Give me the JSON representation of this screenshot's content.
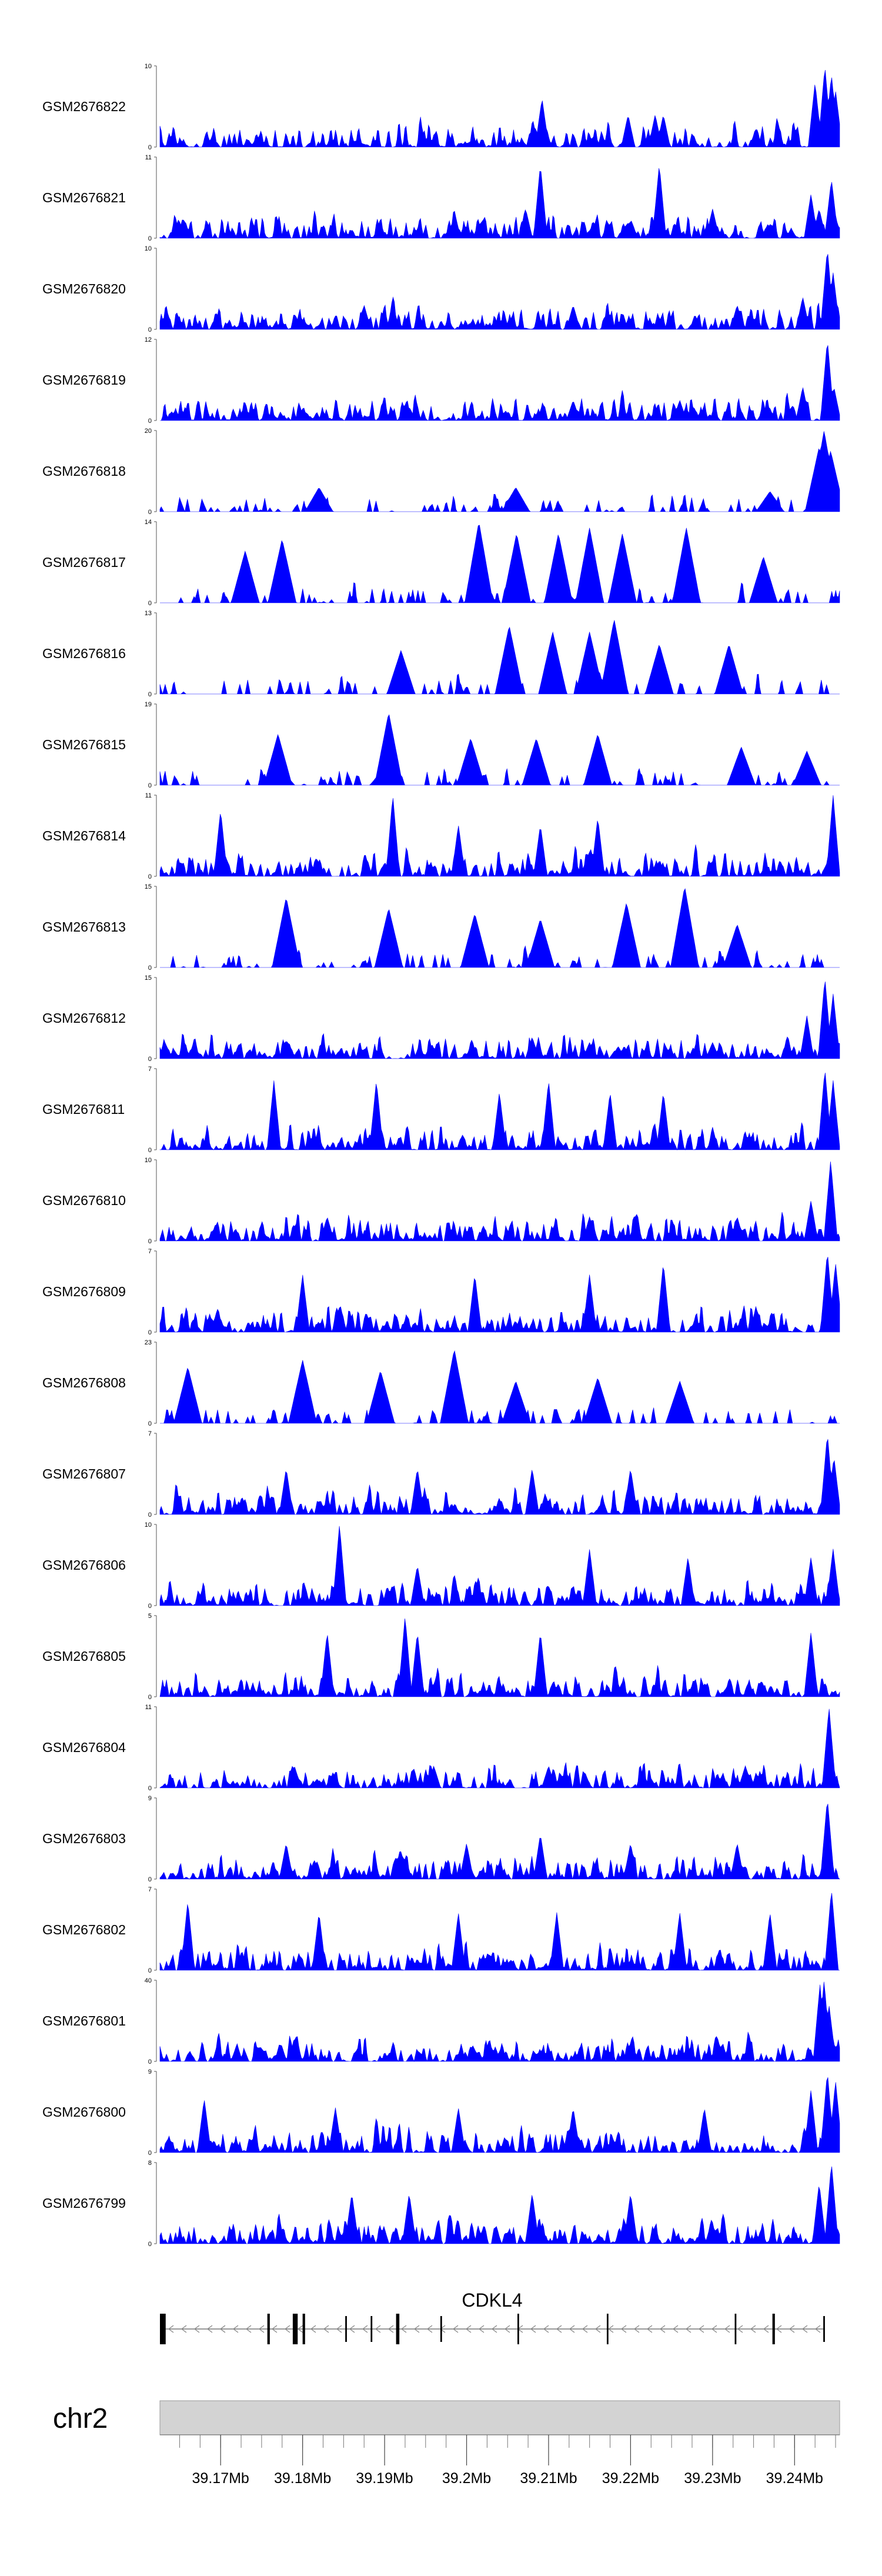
{
  "chart_data": {
    "type": "area",
    "genome_region": {
      "chromosome": "chr2",
      "xlim": [
        39.1626,
        39.2455
      ],
      "tick_values": [
        39.17,
        39.18,
        39.19,
        39.2,
        39.21,
        39.22,
        39.23,
        39.24
      ],
      "tick_labels": [
        "39.17Mb",
        "39.18Mb",
        "39.19Mb",
        "39.2Mb",
        "39.21Mb",
        "39.22Mb",
        "39.23Mb",
        "39.24Mb"
      ],
      "minor_tick_step": 0.0025
    },
    "gene": {
      "name": "CDKL4",
      "strand": "-",
      "start": 39.1626,
      "end": 39.2437,
      "exons": [
        {
          "start": 39.1626,
          "end": 39.1633,
          "thick": true
        },
        {
          "start": 39.1757,
          "end": 39.176,
          "thick": true
        },
        {
          "start": 39.1788,
          "end": 39.1794,
          "thick": true
        },
        {
          "start": 39.18,
          "end": 39.1803,
          "thick": true
        },
        {
          "start": 39.1852,
          "end": 39.1854,
          "thick": false
        },
        {
          "start": 39.1883,
          "end": 39.1885,
          "thick": false
        },
        {
          "start": 39.1914,
          "end": 39.1918,
          "thick": true
        },
        {
          "start": 39.1968,
          "end": 39.197,
          "thick": false
        },
        {
          "start": 39.2062,
          "end": 39.2064,
          "thick": true
        },
        {
          "start": 39.2171,
          "end": 39.2173,
          "thick": true
        },
        {
          "start": 39.2327,
          "end": 39.2329,
          "thick": true
        },
        {
          "start": 39.2373,
          "end": 39.2376,
          "thick": true
        },
        {
          "start": 39.2435,
          "end": 39.2437,
          "thick": false
        }
      ]
    },
    "series": [
      {
        "name": "GSM2676822",
        "ymax": 10,
        "fill": "#0000ff",
        "peaks": [
          [
            39.2092,
            6
          ],
          [
            39.2197,
            4
          ],
          [
            39.223,
            4
          ],
          [
            39.224,
            4
          ],
          [
            39.2425,
            8
          ],
          [
            39.2437,
            10
          ],
          [
            39.2445,
            9
          ],
          [
            39.245,
            7
          ]
        ]
      },
      {
        "name": "GSM2676821",
        "ymax": 11,
        "fill": "#0000ff",
        "peaks": [
          [
            39.209,
            10
          ],
          [
            39.2235,
            10
          ],
          [
            39.2072,
            4
          ],
          [
            39.23,
            4
          ],
          [
            39.242,
            6
          ],
          [
            39.243,
            4
          ],
          [
            39.2445,
            8
          ]
        ]
      },
      {
        "name": "GSM2676820",
        "ymax": 10,
        "fill": "#0000ff",
        "peaks": [
          [
            39.1875,
            3
          ],
          [
            39.213,
            3
          ],
          [
            39.233,
            3
          ],
          [
            39.241,
            4
          ],
          [
            39.244,
            10
          ],
          [
            39.2447,
            7
          ]
        ]
      },
      {
        "name": "GSM2676819",
        "ymax": 12,
        "fill": "#0000ff",
        "peaks": [
          [
            39.193,
            2
          ],
          [
            39.213,
            3
          ],
          [
            39.226,
            3
          ],
          [
            39.241,
            5
          ],
          [
            39.244,
            12
          ],
          [
            39.2448,
            5
          ]
        ]
      },
      {
        "name": "GSM2676818",
        "ymax": 20,
        "fill": "#0000ff",
        "peaks": [
          [
            39.182,
            6
          ],
          [
            39.206,
            6
          ],
          [
            39.237,
            5
          ],
          [
            39.243,
            16
          ],
          [
            39.2436,
            20
          ],
          [
            39.2444,
            15
          ]
        ]
      },
      {
        "name": "GSM2676817",
        "ymax": 14,
        "fill": "#0000ff",
        "peaks": [
          [
            39.173,
            9
          ],
          [
            39.1775,
            11
          ],
          [
            39.2015,
            14
          ],
          [
            39.2061,
            12
          ],
          [
            39.2112,
            12
          ],
          [
            39.215,
            13
          ],
          [
            39.219,
            12
          ],
          [
            39.2268,
            13
          ],
          [
            39.2362,
            8
          ]
        ]
      },
      {
        "name": "GSM2676816",
        "ymax": 13,
        "fill": "#0000ff",
        "peaks": [
          [
            39.192,
            7
          ],
          [
            39.2052,
            11
          ],
          [
            39.2105,
            10
          ],
          [
            39.215,
            10
          ],
          [
            39.218,
            12
          ],
          [
            39.2235,
            8
          ],
          [
            39.232,
            8
          ]
        ]
      },
      {
        "name": "GSM2676815",
        "ymax": 19,
        "fill": "#0000ff",
        "peaks": [
          [
            39.177,
            12
          ],
          [
            39.1905,
            17
          ],
          [
            39.2005,
            11
          ],
          [
            39.2085,
            11
          ],
          [
            39.216,
            12
          ],
          [
            39.2335,
            9
          ],
          [
            39.2415,
            8
          ]
        ]
      },
      {
        "name": "GSM2676814",
        "ymax": 11,
        "fill": "#0000ff",
        "peaks": [
          [
            39.17,
            9
          ],
          [
            39.191,
            11
          ],
          [
            39.199,
            7
          ],
          [
            39.209,
            7
          ],
          [
            39.216,
            8
          ],
          [
            39.2447,
            11
          ]
        ]
      },
      {
        "name": "GSM2676813",
        "ymax": 15,
        "fill": "#0000ff",
        "peaks": [
          [
            39.178,
            13
          ],
          [
            39.1905,
            11
          ],
          [
            39.201,
            10
          ],
          [
            39.209,
            9
          ],
          [
            39.2195,
            12
          ],
          [
            39.2266,
            15
          ],
          [
            39.233,
            8
          ]
        ]
      },
      {
        "name": "GSM2676812",
        "ymax": 15,
        "fill": "#0000ff",
        "peaks": [
          [
            39.208,
            4
          ],
          [
            39.215,
            3
          ],
          [
            39.23,
            3
          ],
          [
            39.2415,
            8
          ],
          [
            39.2437,
            15
          ],
          [
            39.2447,
            12
          ]
        ]
      },
      {
        "name": "GSM2676811",
        "ymax": 7,
        "fill": "#0000ff",
        "peaks": [
          [
            39.1765,
            6
          ],
          [
            39.189,
            6
          ],
          [
            39.204,
            5
          ],
          [
            39.21,
            6
          ],
          [
            39.2175,
            5
          ],
          [
            39.224,
            5
          ],
          [
            39.2437,
            7
          ],
          [
            39.2447,
            6
          ]
        ]
      },
      {
        "name": "GSM2676810",
        "ymax": 10,
        "fill": "#0000ff",
        "peaks": [
          [
            39.183,
            3
          ],
          [
            39.215,
            3
          ],
          [
            39.233,
            3
          ],
          [
            39.242,
            5
          ],
          [
            39.2444,
            10
          ]
        ]
      },
      {
        "name": "GSM2676809",
        "ymax": 7,
        "fill": "#0000ff",
        "peaks": [
          [
            39.18,
            5
          ],
          [
            39.201,
            5
          ],
          [
            39.215,
            5
          ],
          [
            39.224,
            6
          ],
          [
            39.244,
            7
          ],
          [
            39.245,
            6
          ]
        ]
      },
      {
        "name": "GSM2676808",
        "ymax": 23,
        "fill": "#0000ff",
        "peaks": [
          [
            39.166,
            16
          ],
          [
            39.18,
            18
          ],
          [
            39.1895,
            15
          ],
          [
            39.1985,
            21
          ],
          [
            39.206,
            12
          ],
          [
            39.216,
            13
          ],
          [
            39.226,
            12
          ]
        ]
      },
      {
        "name": "GSM2676807",
        "ymax": 7,
        "fill": "#0000ff",
        "peaks": [
          [
            39.178,
            4
          ],
          [
            39.194,
            4
          ],
          [
            39.208,
            4
          ],
          [
            39.22,
            4
          ],
          [
            39.244,
            7
          ],
          [
            39.2448,
            5
          ]
        ]
      },
      {
        "name": "GSM2676806",
        "ymax": 10,
        "fill": "#0000ff",
        "peaks": [
          [
            39.1845,
            10
          ],
          [
            39.194,
            5
          ],
          [
            39.215,
            7
          ],
          [
            39.227,
            6
          ],
          [
            39.242,
            6
          ],
          [
            39.2447,
            7
          ]
        ]
      },
      {
        "name": "GSM2676805",
        "ymax": 5,
        "fill": "#0000ff",
        "peaks": [
          [
            39.183,
            4
          ],
          [
            39.1925,
            5
          ],
          [
            39.194,
            4
          ],
          [
            39.209,
            4
          ],
          [
            39.242,
            4
          ]
        ]
      },
      {
        "name": "GSM2676804",
        "ymax": 11,
        "fill": "#0000ff",
        "peaks": [
          [
            39.179,
            3
          ],
          [
            39.196,
            3
          ],
          [
            39.21,
            3
          ],
          [
            39.234,
            3
          ],
          [
            39.2442,
            11
          ]
        ]
      },
      {
        "name": "GSM2676803",
        "ymax": 9,
        "fill": "#0000ff",
        "peaks": [
          [
            39.178,
            4
          ],
          [
            39.2,
            4
          ],
          [
            39.209,
            5
          ],
          [
            39.22,
            4
          ],
          [
            39.233,
            4
          ],
          [
            39.244,
            9
          ]
        ]
      },
      {
        "name": "GSM2676802",
        "ymax": 7,
        "fill": "#0000ff",
        "peaks": [
          [
            39.166,
            6
          ],
          [
            39.182,
            5
          ],
          [
            39.199,
            5
          ],
          [
            39.211,
            5
          ],
          [
            39.226,
            5
          ],
          [
            39.237,
            5
          ],
          [
            39.2445,
            7
          ]
        ]
      },
      {
        "name": "GSM2676801",
        "ymax": 40,
        "fill": "#0000ff",
        "peaks": [
          [
            39.2431,
            38
          ],
          [
            39.2436,
            40
          ],
          [
            39.2442,
            28
          ]
        ]
      },
      {
        "name": "GSM2676800",
        "ymax": 9,
        "fill": "#0000ff",
        "peaks": [
          [
            39.168,
            6
          ],
          [
            39.184,
            5
          ],
          [
            39.199,
            5
          ],
          [
            39.213,
            5
          ],
          [
            39.229,
            5
          ],
          [
            39.242,
            7
          ],
          [
            39.244,
            9
          ],
          [
            39.245,
            8
          ]
        ]
      },
      {
        "name": "GSM2676799",
        "ymax": 8,
        "fill": "#0000ff",
        "peaks": [
          [
            39.186,
            5
          ],
          [
            39.193,
            5
          ],
          [
            39.208,
            5
          ],
          [
            39.22,
            5
          ],
          [
            39.243,
            6
          ],
          [
            39.2445,
            8
          ]
        ]
      }
    ],
    "grid": false,
    "legend": "none"
  }
}
